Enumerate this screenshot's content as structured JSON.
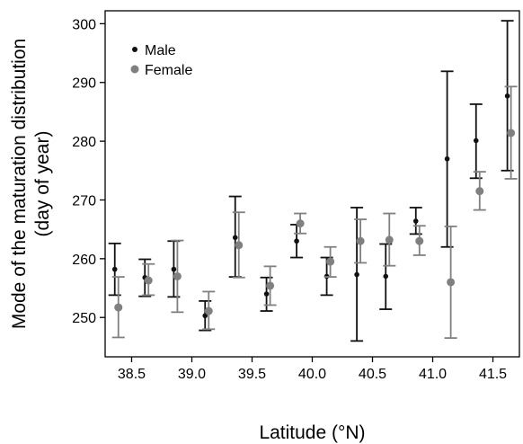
{
  "chart_data": {
    "type": "scatter",
    "title": "",
    "xlabel": "Latitude (°N)",
    "ylabel_lines": [
      "Mode of the maturation distribution",
      "(day of year)"
    ],
    "xlim": [
      38.28,
      41.72
    ],
    "ylim": [
      243.3,
      302.2
    ],
    "xticks": [
      38.5,
      39.0,
      39.5,
      40.0,
      40.5,
      41.0,
      41.5
    ],
    "xtick_labels": [
      "38.5",
      "39.0",
      "39.5",
      "40.0",
      "40.5",
      "41.0",
      "41.5"
    ],
    "yticks": [
      250,
      260,
      270,
      280,
      290,
      300
    ],
    "ytick_labels": [
      "250",
      "260",
      "270",
      "280",
      "290",
      "300"
    ],
    "grid": false,
    "legend_position": "top-left",
    "series": [
      {
        "name": "Male",
        "color": "#111111",
        "points": [
          {
            "x": 38.36,
            "y": 258.2,
            "lo": 253.8,
            "hi": 262.6
          },
          {
            "x": 38.61,
            "y": 256.8,
            "lo": 253.6,
            "hi": 259.9
          },
          {
            "x": 38.85,
            "y": 258.2,
            "lo": 253.5,
            "hi": 263.0
          },
          {
            "x": 39.11,
            "y": 250.3,
            "lo": 247.8,
            "hi": 252.8
          },
          {
            "x": 39.36,
            "y": 263.6,
            "lo": 256.9,
            "hi": 270.6
          },
          {
            "x": 39.62,
            "y": 254.0,
            "lo": 251.1,
            "hi": 256.8
          },
          {
            "x": 39.87,
            "y": 263.0,
            "lo": 260.2,
            "hi": 265.8
          },
          {
            "x": 40.12,
            "y": 257.0,
            "lo": 253.8,
            "hi": 260.2
          },
          {
            "x": 40.37,
            "y": 257.3,
            "lo": 246.0,
            "hi": 268.7
          },
          {
            "x": 40.61,
            "y": 257.0,
            "lo": 251.4,
            "hi": 262.5
          },
          {
            "x": 40.86,
            "y": 266.4,
            "lo": 264.2,
            "hi": 268.7
          },
          {
            "x": 41.12,
            "y": 277.0,
            "lo": 262.0,
            "hi": 291.9
          },
          {
            "x": 41.36,
            "y": 280.1,
            "lo": 273.7,
            "hi": 286.3
          },
          {
            "x": 41.62,
            "y": 287.7,
            "lo": 275.0,
            "hi": 300.5
          }
        ]
      },
      {
        "name": "Female",
        "color": "#808080",
        "points": [
          {
            "x": 38.39,
            "y": 251.7,
            "lo": 246.6,
            "hi": 256.9
          },
          {
            "x": 38.64,
            "y": 256.3,
            "lo": 253.8,
            "hi": 259.1
          },
          {
            "x": 38.88,
            "y": 257.0,
            "lo": 250.9,
            "hi": 263.1
          },
          {
            "x": 39.14,
            "y": 251.1,
            "lo": 248.0,
            "hi": 254.4
          },
          {
            "x": 39.39,
            "y": 262.3,
            "lo": 256.8,
            "hi": 267.9
          },
          {
            "x": 39.65,
            "y": 255.4,
            "lo": 252.1,
            "hi": 258.7
          },
          {
            "x": 39.9,
            "y": 266.0,
            "lo": 264.3,
            "hi": 267.7
          },
          {
            "x": 40.15,
            "y": 259.5,
            "lo": 256.9,
            "hi": 262.0
          },
          {
            "x": 40.4,
            "y": 263.0,
            "lo": 259.3,
            "hi": 266.7
          },
          {
            "x": 40.64,
            "y": 263.2,
            "lo": 258.8,
            "hi": 267.7
          },
          {
            "x": 40.89,
            "y": 263.0,
            "lo": 260.6,
            "hi": 265.6
          },
          {
            "x": 41.15,
            "y": 256.0,
            "lo": 246.5,
            "hi": 265.5
          },
          {
            "x": 41.39,
            "y": 271.5,
            "lo": 268.3,
            "hi": 274.8
          },
          {
            "x": 41.65,
            "y": 281.4,
            "lo": 273.6,
            "hi": 289.3
          }
        ]
      }
    ]
  }
}
